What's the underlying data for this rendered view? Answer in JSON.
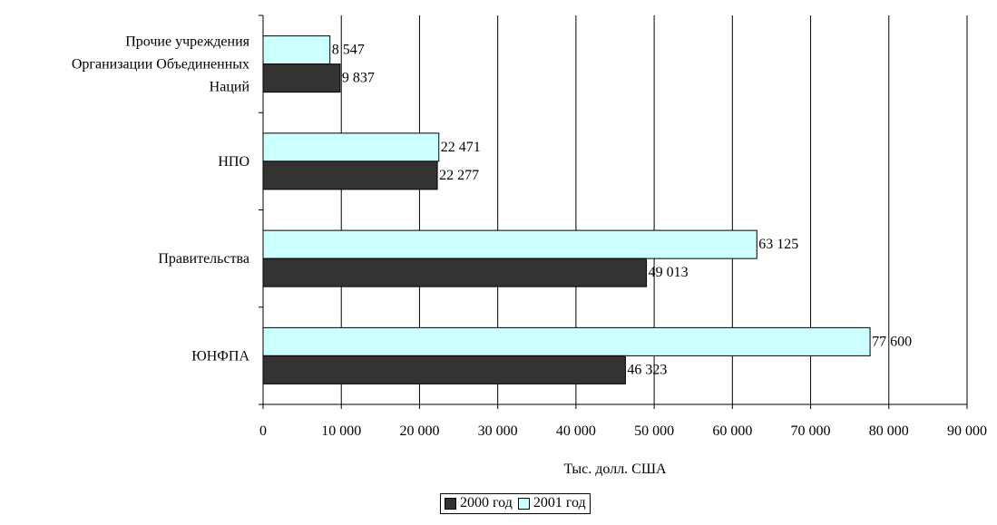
{
  "chart_data": {
    "type": "bar",
    "orientation": "horizontal",
    "categories": [
      [
        "Прочие учреждения",
        "Организации Объединенных",
        "Наций"
      ],
      [
        "НПО"
      ],
      [
        "Правительства"
      ],
      [
        "ЮНФПА"
      ]
    ],
    "series": [
      {
        "name": "2001 год",
        "color": "#ccffff",
        "values": [
          8547,
          22471,
          63125,
          77600
        ],
        "labels": [
          "8 547",
          "22 471",
          "63 125",
          "77 600"
        ]
      },
      {
        "name": "2000 год",
        "color": "#333333",
        "values": [
          9837,
          22277,
          49013,
          46323
        ],
        "labels": [
          "9 837",
          "22 277",
          "49 013",
          "46 323"
        ]
      }
    ],
    "xlabel": "Тыс. долл. США",
    "xlim": [
      0,
      90000
    ],
    "xticks": [
      0,
      10000,
      20000,
      30000,
      40000,
      50000,
      60000,
      70000,
      80000,
      90000
    ],
    "xtick_labels": [
      "0",
      "10 000",
      "20 000",
      "30 000",
      "40 000",
      "50 000",
      "60 000",
      "70 000",
      "80 000",
      "90 000"
    ],
    "grid": "vertical",
    "legend": {
      "position": "bottom",
      "items": [
        {
          "name": "2000 год",
          "color": "#333333"
        },
        {
          "name": "2001 год",
          "color": "#ccffff"
        }
      ]
    }
  }
}
